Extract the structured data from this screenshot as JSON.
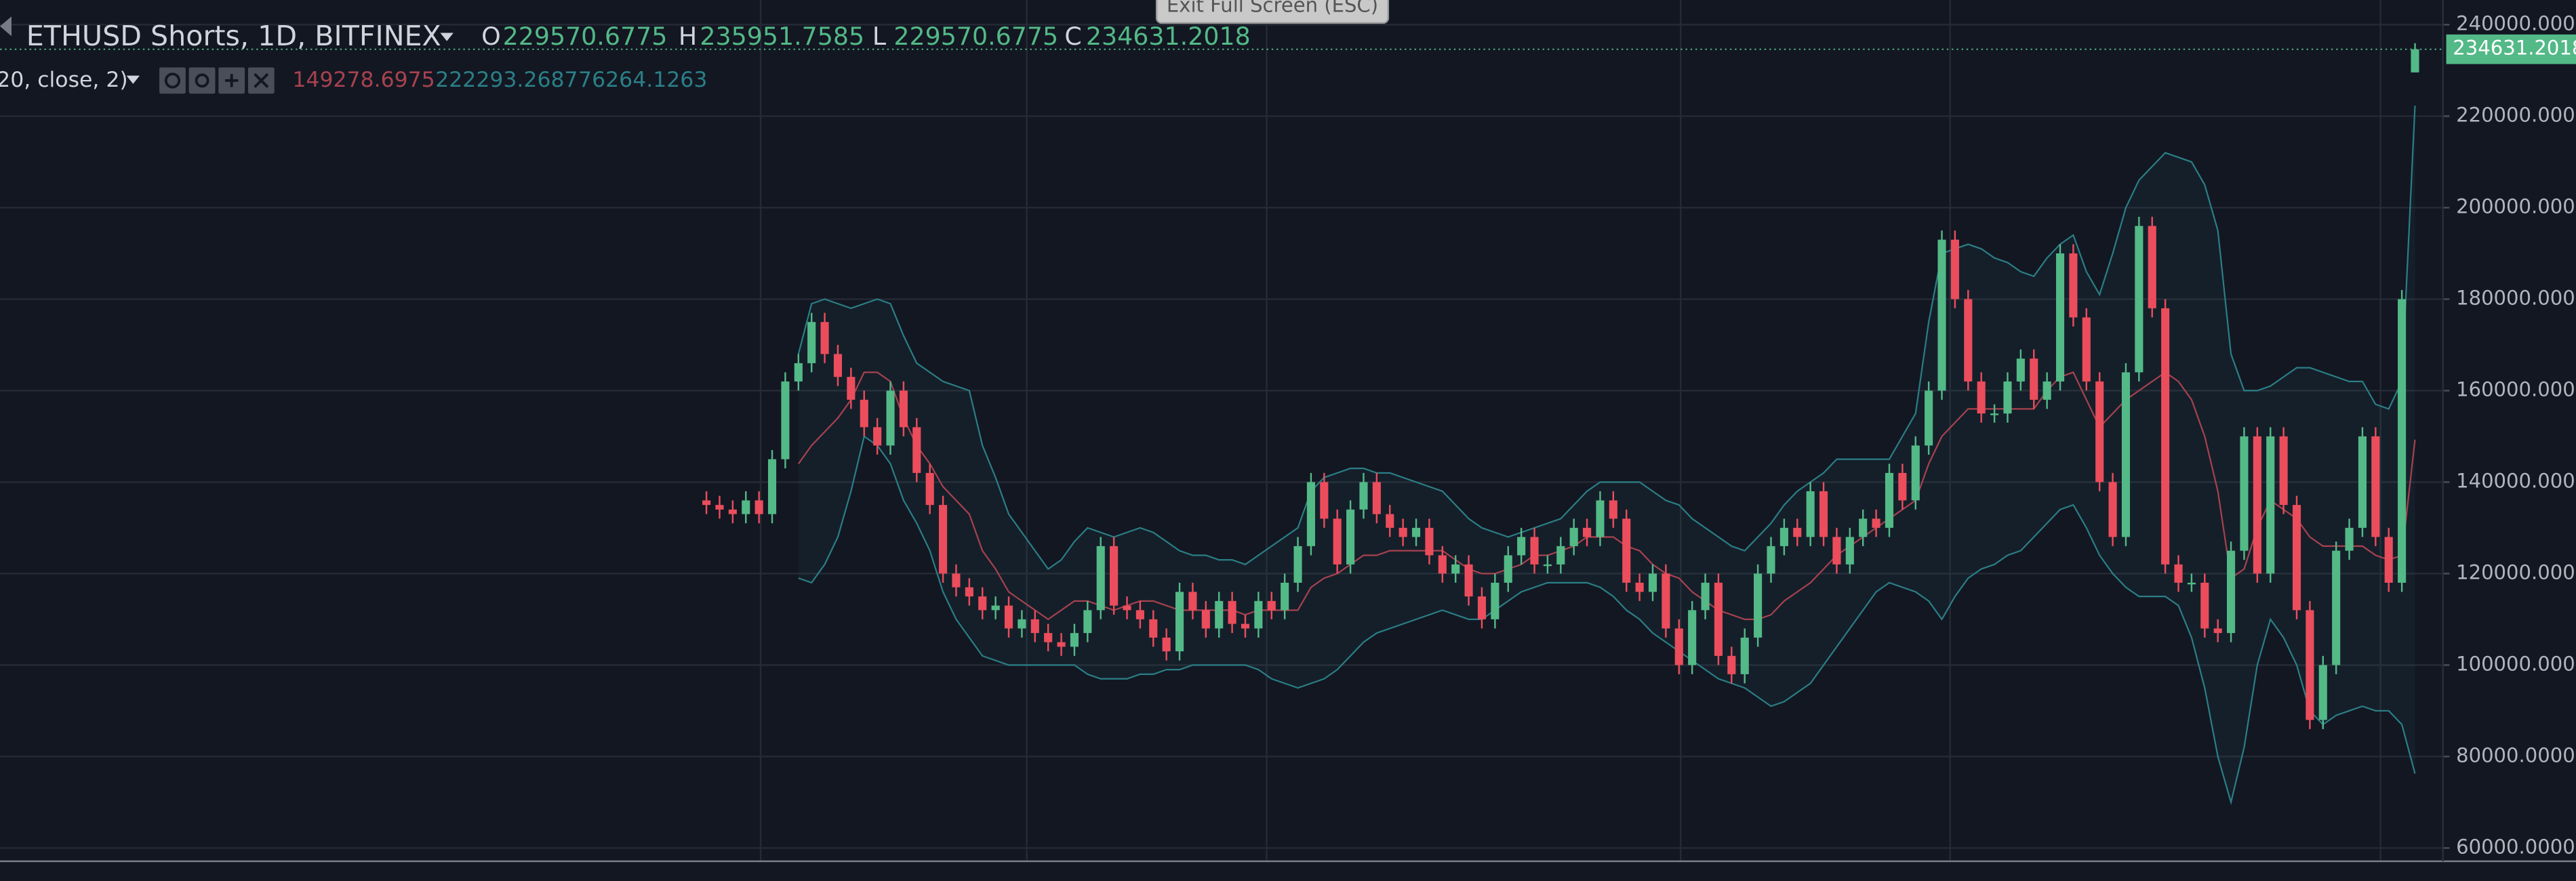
{
  "header": {
    "exit_button": "Exit Full Screen (ESC)"
  },
  "chart_data": {
    "type": "candlestick",
    "title": "ETHUSD Shorts, 1D, BITFINEX",
    "ohlc_labels": [
      "O",
      "H",
      "L",
      "C"
    ],
    "indicator": "20, close, 2)",
    "ylim": [
      57100,
      245400
    ],
    "yticks": [
      {
        "value": 60000,
        "label": "60000.0000"
      },
      {
        "value": 80000,
        "label": "80000.0000"
      },
      {
        "value": 100000,
        "label": "100000.0000"
      },
      {
        "value": 120000,
        "label": "120000.0000"
      },
      {
        "value": 140000,
        "label": "140000.0000"
      },
      {
        "value": 160000,
        "label": "160000.0000"
      },
      {
        "value": 180000,
        "label": "180000.0000"
      },
      {
        "value": 200000,
        "label": "200000.0000"
      },
      {
        "value": 220000,
        "label": "220000.0000"
      },
      {
        "value": 240000,
        "label": "240000.0000"
      }
    ],
    "grid": true,
    "up_color": "#53b987",
    "down_color": "#eb4d5c",
    "open": [
      136000,
      135000,
      134000,
      133000,
      136000,
      133000,
      145000,
      162000,
      166000,
      175000,
      168000,
      163000,
      158000,
      152000,
      148000,
      160000,
      152000,
      142000,
      135000,
      120000,
      117000,
      115000,
      112000,
      113000,
      108000,
      110000,
      107000,
      105000,
      104000,
      107000,
      112000,
      126000,
      113000,
      112000,
      110000,
      106000,
      103000,
      116000,
      112000,
      108000,
      114000,
      109000,
      108000,
      114000,
      112000,
      118000,
      126000,
      140000,
      132000,
      122000,
      134000,
      140000,
      133000,
      130000,
      128000,
      130000,
      124000,
      120000,
      122000,
      115000,
      110000,
      118000,
      124000,
      128000,
      122000,
      122000,
      126000,
      130000,
      128000,
      136000,
      132000,
      118000,
      116000,
      120000,
      108000,
      100000,
      112000,
      118000,
      102000,
      98000,
      106000,
      120000,
      126000,
      130000,
      128000,
      138000,
      128000,
      122000,
      128000,
      132000,
      130000,
      142000,
      136000,
      148000,
      160000,
      193000,
      180000,
      162000,
      155000,
      155000,
      162000,
      167000,
      158000,
      162000,
      190000,
      176000,
      162000,
      140000,
      128000,
      164000,
      196000,
      178000,
      122000,
      118000,
      118000,
      108000,
      107000,
      125000,
      150000,
      120000,
      150000,
      135000,
      112000,
      88000,
      100000,
      125000,
      130000,
      150000,
      128000,
      118000,
      229570.6775
    ],
    "high": [
      138000,
      137000,
      136000,
      138000,
      138000,
      147000,
      164000,
      168000,
      177000,
      177000,
      170000,
      165000,
      160000,
      154000,
      162000,
      162000,
      154000,
      144000,
      137000,
      122000,
      119000,
      117000,
      115000,
      115000,
      112000,
      112000,
      109000,
      107000,
      109000,
      114000,
      128000,
      128000,
      115000,
      114000,
      112000,
      108000,
      118000,
      118000,
      114000,
      116000,
      116000,
      111000,
      116000,
      116000,
      120000,
      128000,
      142000,
      142000,
      134000,
      136000,
      142000,
      142000,
      135000,
      132000,
      132000,
      132000,
      126000,
      124000,
      124000,
      117000,
      120000,
      126000,
      130000,
      130000,
      124000,
      128000,
      132000,
      132000,
      138000,
      138000,
      134000,
      120000,
      122000,
      122000,
      110000,
      114000,
      120000,
      120000,
      104000,
      108000,
      122000,
      128000,
      132000,
      132000,
      140000,
      140000,
      130000,
      130000,
      134000,
      134000,
      144000,
      144000,
      150000,
      162000,
      195000,
      195000,
      182000,
      164000,
      157000,
      164000,
      169000,
      169000,
      164000,
      192000,
      192000,
      178000,
      164000,
      142000,
      166000,
      198000,
      198000,
      180000,
      124000,
      120000,
      120000,
      110000,
      127000,
      152000,
      152000,
      152000,
      152000,
      137000,
      114000,
      102000,
      127000,
      132000,
      152000,
      152000,
      130000,
      182000,
      235951.7585
    ],
    "low": [
      133000,
      132000,
      131000,
      131000,
      131000,
      131000,
      143000,
      160000,
      164000,
      166000,
      161000,
      156000,
      150000,
      146000,
      146000,
      150000,
      140000,
      133000,
      118000,
      115000,
      113000,
      110000,
      110000,
      106000,
      106000,
      105000,
      103000,
      102000,
      102000,
      105000,
      110000,
      111000,
      110000,
      108000,
      104000,
      101000,
      101000,
      110000,
      106000,
      106000,
      107000,
      106000,
      106000,
      110000,
      110000,
      116000,
      124000,
      130000,
      120000,
      120000,
      132000,
      131000,
      128000,
      126000,
      126000,
      122000,
      118000,
      118000,
      113000,
      108000,
      108000,
      116000,
      122000,
      120000,
      120000,
      120000,
      124000,
      126000,
      126000,
      130000,
      116000,
      114000,
      114000,
      106000,
      98000,
      98000,
      110000,
      100000,
      96000,
      96000,
      104000,
      118000,
      124000,
      126000,
      126000,
      126000,
      120000,
      120000,
      126000,
      128000,
      128000,
      134000,
      134000,
      146000,
      158000,
      178000,
      160000,
      153000,
      153000,
      153000,
      160000,
      156000,
      156000,
      160000,
      174000,
      160000,
      138000,
      126000,
      126000,
      162000,
      176000,
      120000,
      116000,
      116000,
      106000,
      105000,
      105000,
      123000,
      118000,
      118000,
      133000,
      110000,
      86000,
      86000,
      98000,
      123000,
      128000,
      126000,
      116000,
      116000,
      229570.6775
    ],
    "close": [
      135000,
      134000,
      133000,
      136000,
      133000,
      145000,
      162000,
      166000,
      175000,
      168000,
      163000,
      158000,
      152000,
      148000,
      160000,
      152000,
      142000,
      135000,
      120000,
      117000,
      115000,
      112000,
      113000,
      108000,
      110000,
      107000,
      105000,
      104000,
      107000,
      112000,
      126000,
      113000,
      112000,
      110000,
      106000,
      103000,
      116000,
      112000,
      108000,
      114000,
      109000,
      108000,
      114000,
      112000,
      118000,
      126000,
      140000,
      132000,
      122000,
      134000,
      140000,
      133000,
      130000,
      128000,
      130000,
      124000,
      120000,
      122000,
      115000,
      110000,
      118000,
      124000,
      128000,
      122000,
      122000,
      126000,
      130000,
      128000,
      136000,
      132000,
      118000,
      116000,
      120000,
      108000,
      100000,
      112000,
      118000,
      102000,
      98000,
      106000,
      120000,
      126000,
      130000,
      128000,
      138000,
      128000,
      122000,
      128000,
      132000,
      130000,
      142000,
      136000,
      148000,
      160000,
      193000,
      180000,
      162000,
      155000,
      155000,
      162000,
      167000,
      158000,
      162000,
      190000,
      176000,
      162000,
      140000,
      128000,
      164000,
      196000,
      178000,
      122000,
      118000,
      118000,
      108000,
      107000,
      125000,
      150000,
      120000,
      150000,
      135000,
      112000,
      88000,
      100000,
      125000,
      130000,
      150000,
      128000,
      118000,
      180000,
      234631.2018
    ],
    "bands": {
      "fill_color": "rgba(40,110,120,0.10)",
      "basis": {
        "color": "#a8424f",
        "values": [
          null,
          null,
          null,
          null,
          null,
          null,
          null,
          144000,
          148000,
          151000,
          154000,
          158000,
          164000,
          164000,
          162000,
          154000,
          148000,
          144000,
          139000,
          136000,
          133000,
          125000,
          121000,
          116000,
          114000,
          112000,
          110000,
          112000,
          114000,
          114000,
          113000,
          112000,
          113000,
          114000,
          114000,
          113000,
          112000,
          112000,
          112000,
          112000,
          112000,
          111000,
          112000,
          112000,
          112000,
          112000,
          117000,
          119000,
          120000,
          122000,
          124000,
          124000,
          125000,
          125000,
          125000,
          125000,
          125000,
          123000,
          121000,
          120000,
          120000,
          121000,
          122000,
          124000,
          124000,
          125000,
          126000,
          128000,
          128000,
          128000,
          126000,
          125000,
          122000,
          120000,
          119000,
          116000,
          114000,
          112000,
          111000,
          110000,
          110000,
          111000,
          114000,
          116000,
          118000,
          121000,
          124000,
          126000,
          128000,
          130000,
          132000,
          134000,
          136000,
          144000,
          150000,
          153000,
          156000,
          156000,
          156000,
          156000,
          156000,
          156000,
          160000,
          163000,
          164000,
          158000,
          152000,
          155000,
          158000,
          160000,
          162000,
          164000,
          162000,
          158000,
          150000,
          138000,
          119000,
          121000,
          130000,
          136000,
          134000,
          132000,
          128000,
          126000,
          126000,
          126000,
          126000,
          124000,
          123000,
          124000,
          149278.6975
        ]
      },
      "upper": {
        "color": "#2b7f86",
        "values": [
          null,
          null,
          null,
          null,
          null,
          null,
          null,
          168000,
          179000,
          180000,
          179000,
          178000,
          179000,
          180000,
          179000,
          172000,
          166000,
          164000,
          162000,
          161000,
          160000,
          148000,
          141000,
          133000,
          129000,
          125000,
          121000,
          123000,
          127000,
          130000,
          129000,
          128000,
          129000,
          130000,
          129000,
          127000,
          125000,
          124000,
          124000,
          123000,
          123000,
          122000,
          124000,
          126000,
          128000,
          130000,
          138000,
          141000,
          142000,
          143000,
          143000,
          142000,
          142000,
          141000,
          140000,
          139000,
          138000,
          135000,
          132000,
          130000,
          129000,
          128000,
          129000,
          130000,
          131000,
          132000,
          135000,
          138000,
          140000,
          140000,
          140000,
          140000,
          138000,
          136000,
          135000,
          132000,
          130000,
          128000,
          126000,
          125000,
          128000,
          131000,
          135000,
          138000,
          140000,
          142000,
          145000,
          145000,
          145000,
          145000,
          145000,
          150000,
          155000,
          175000,
          190000,
          191000,
          192000,
          191000,
          189000,
          188000,
          186000,
          185000,
          189000,
          192000,
          194000,
          186000,
          181000,
          190000,
          200000,
          206000,
          209000,
          212000,
          211000,
          210000,
          205000,
          195000,
          168000,
          160000,
          160000,
          161000,
          163000,
          165000,
          165000,
          164000,
          163000,
          162000,
          162000,
          157000,
          156000,
          162000,
          222293.2687
        ]
      },
      "lower": {
        "color": "#2b7f86",
        "values": [
          null,
          null,
          null,
          null,
          null,
          null,
          null,
          119000,
          118000,
          122000,
          128000,
          138000,
          150000,
          148000,
          144000,
          136000,
          131000,
          125000,
          116000,
          110000,
          106000,
          102000,
          101000,
          100000,
          100000,
          100000,
          100000,
          100000,
          100000,
          98000,
          97000,
          97000,
          97000,
          98000,
          98000,
          99000,
          99000,
          100000,
          100000,
          100000,
          100000,
          100000,
          99000,
          97000,
          96000,
          95000,
          96000,
          97000,
          99000,
          102000,
          105000,
          107000,
          108000,
          109000,
          110000,
          111000,
          112000,
          111000,
          110000,
          110000,
          112000,
          114000,
          116000,
          117000,
          118000,
          118000,
          118000,
          118000,
          117000,
          115000,
          112000,
          110000,
          107000,
          105000,
          103000,
          101000,
          99000,
          97000,
          96000,
          95000,
          93000,
          91000,
          92000,
          94000,
          96000,
          100000,
          104000,
          108000,
          112000,
          116000,
          118000,
          117000,
          116000,
          114000,
          110000,
          115000,
          119000,
          121000,
          122000,
          124000,
          125000,
          128000,
          131000,
          134000,
          135000,
          130000,
          124000,
          120000,
          117000,
          115000,
          115000,
          115000,
          113000,
          106000,
          95000,
          80000,
          70000,
          82000,
          100000,
          110000,
          106000,
          100000,
          90000,
          87000,
          89000,
          90000,
          91000,
          90000,
          90000,
          87000,
          76264.1263
        ]
      }
    }
  }
}
